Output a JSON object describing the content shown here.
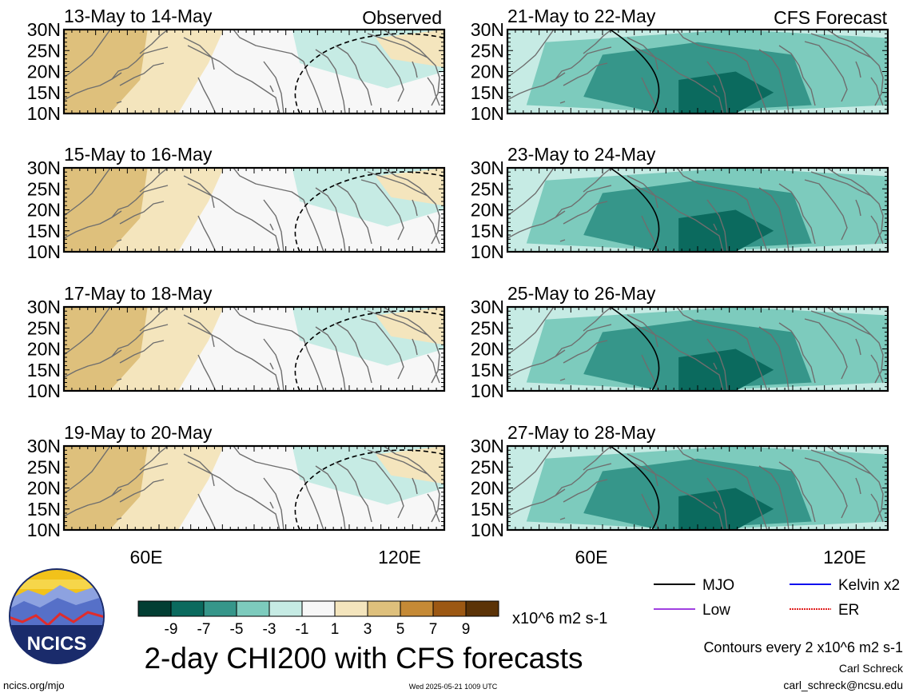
{
  "header_left": "Observed",
  "header_right": "CFS Forecast",
  "lat_labels": [
    "30N",
    "25N",
    "20N",
    "15N",
    "10N"
  ],
  "lon_labels": [
    "60E",
    "120E"
  ],
  "panels": [
    {
      "title": "13-May to 14-May",
      "col": 0,
      "row": 0,
      "anomaly": "mixed"
    },
    {
      "title": "15-May to 16-May",
      "col": 0,
      "row": 1,
      "anomaly": "mixed"
    },
    {
      "title": "17-May to 18-May",
      "col": 0,
      "row": 2,
      "anomaly": "mixed"
    },
    {
      "title": "19-May to 20-May",
      "col": 0,
      "row": 3,
      "anomaly": "mixed"
    },
    {
      "title": "21-May to 22-May",
      "col": 1,
      "row": 0,
      "anomaly": "negative"
    },
    {
      "title": "23-May to 24-May",
      "col": 1,
      "row": 1,
      "anomaly": "negative"
    },
    {
      "title": "25-May to 26-May",
      "col": 1,
      "row": 2,
      "anomaly": "negative"
    },
    {
      "title": "27-May to 28-May",
      "col": 1,
      "row": 3,
      "anomaly": "negative"
    }
  ],
  "colorbar": {
    "colors": [
      "#023e33",
      "#0b6a5e",
      "#36968a",
      "#7dcbbd",
      "#c6ebe4",
      "#f7f7f7",
      "#f4e5bd",
      "#dec07c",
      "#c58a36",
      "#9c5813",
      "#5b3307"
    ],
    "tick_labels": [
      "-9",
      "-7",
      "-5",
      "-3",
      "-1",
      "1",
      "3",
      "5",
      "7",
      "9"
    ],
    "units": "x10^6 m2 s-1"
  },
  "legend": [
    {
      "label": "MJO",
      "color": "#000000",
      "style": "solid"
    },
    {
      "label": "Kelvin x2",
      "color": "#1010ee",
      "style": "solid"
    },
    {
      "label": "Low",
      "color": "#a040e0",
      "style": "solid"
    },
    {
      "label": "ER",
      "color": "#e02020",
      "style": "dotted"
    }
  ],
  "logo_text": "NCICS",
  "main_title": "2-day CHI200 with CFS forecasts",
  "contour_note": "Contours every 2 x10^6 m2 s-1",
  "author": "Carl Schreck",
  "email": "carl_schreck@ncsu.edu",
  "website": "ncics.org/mjo",
  "timestamp": "Wed 2025-05-21 1009 UTC"
}
